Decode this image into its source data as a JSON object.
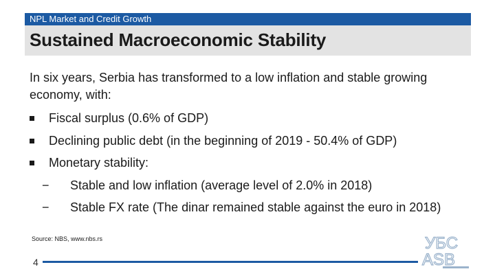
{
  "header": {
    "section_label": "NPL Market and Credit Growth",
    "title": "Sustained Macroeconomic Stability"
  },
  "body": {
    "intro": "In six years, Serbia has transformed to a low inflation and stable growing economy, with:",
    "bullets": [
      {
        "text": "Fiscal surplus (0.6% of GDP)"
      },
      {
        "text": "Declining public debt  (in the beginning of 2019 - 50.4% of GDP)"
      },
      {
        "text": "Monetary stability:"
      }
    ],
    "sub_bullets": [
      {
        "dash": "−",
        "text": "Stable and low inflation  (average level of 2.0% in 2018)"
      },
      {
        "dash": "−",
        "text": "Stable FX rate (The dinar remained stable against the euro in 2018)"
      }
    ]
  },
  "footer": {
    "source": "Source: NBS, www.nbs.rs",
    "page_number": "4",
    "logo_text_top": "УБС",
    "logo_text_bottom": "АSB",
    "accent_color": "#1c5aa3"
  }
}
